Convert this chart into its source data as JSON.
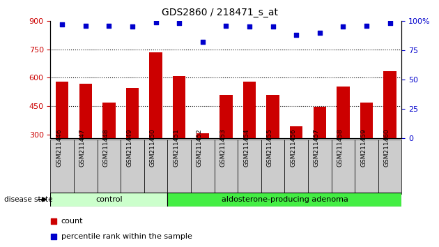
{
  "title": "GDS2860 / 218471_s_at",
  "categories": [
    "GSM211446",
    "GSM211447",
    "GSM211448",
    "GSM211449",
    "GSM211450",
    "GSM211451",
    "GSM211452",
    "GSM211453",
    "GSM211454",
    "GSM211455",
    "GSM211456",
    "GSM211457",
    "GSM211458",
    "GSM211459",
    "GSM211460"
  ],
  "counts": [
    580,
    570,
    470,
    545,
    735,
    610,
    308,
    510,
    580,
    510,
    345,
    445,
    555,
    470,
    635
  ],
  "percentiles": [
    97,
    96,
    96,
    95,
    99,
    98,
    82,
    96,
    95,
    95,
    88,
    90,
    95,
    96,
    98
  ],
  "ylim_left": [
    280,
    900
  ],
  "ylim_right": [
    0,
    100
  ],
  "yticks_left": [
    300,
    450,
    600,
    750,
    900
  ],
  "yticks_right": [
    0,
    25,
    50,
    75,
    100
  ],
  "bar_color": "#cc0000",
  "dot_color": "#0000cc",
  "control_count": 5,
  "adenoma_count": 10,
  "control_label": "control",
  "adenoma_label": "aldosterone-producing adenoma",
  "disease_state_label": "disease state",
  "legend_count_label": "count",
  "legend_percentile_label": "percentile rank within the sample",
  "control_bg": "#ccffcc",
  "adenoma_bg": "#44ee44",
  "xlabel_bg": "#cccccc",
  "fig_bg": "#ffffff"
}
